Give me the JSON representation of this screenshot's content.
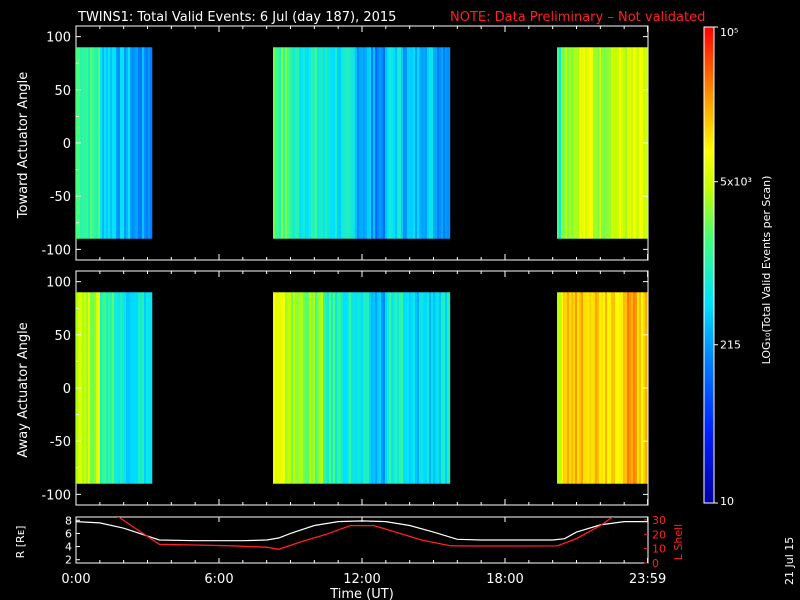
{
  "title": "TWINS1: Total Valid Events:  6 Jul (day 187), 2015",
  "note": "NOTE: Data Preliminary – Not validated",
  "note_color": "#ff2020",
  "stamp": "21 Jul 15",
  "chart_data": {
    "type": "heatmap",
    "x_unit": "hours UT",
    "x_range": [
      0,
      24
    ],
    "xlabel": "Time (UT)",
    "x_ticks": [
      "0:00",
      "6:00",
      "12:00",
      "18:00",
      "23:59"
    ],
    "x_tick_hours": [
      0,
      6,
      12,
      18,
      23.983
    ],
    "data_intervals_hours": [
      [
        0,
        3.2
      ],
      [
        8.3,
        15.7
      ],
      [
        20.2,
        24
      ]
    ],
    "panels": [
      {
        "ylabel": "Toward Actuator Angle",
        "ylim": [
          -110,
          110
        ],
        "y_ticks": [
          100,
          50,
          0,
          -50,
          -100
        ],
        "data_yrange": [
          -90,
          90
        ],
        "profile_log10": [
          3.2,
          3.1,
          2.7,
          2.5,
          2.3,
          2.3,
          2.4,
          2.6,
          2.7,
          2.6,
          2.6,
          2.8,
          3.2,
          3.2,
          2.9,
          2.9,
          2.8,
          2.7,
          2.5,
          2.3,
          2.7,
          2.5,
          2.6,
          2.4,
          2.6,
          2.8,
          2.6,
          2.8,
          3.0,
          2.9,
          3.0,
          3.6,
          3.8,
          3.6,
          3.7,
          3.7,
          3.7
        ]
      },
      {
        "ylabel": "Away Actuator Angle",
        "ylim": [
          -110,
          110
        ],
        "y_ticks": [
          100,
          50,
          0,
          -50,
          -100
        ],
        "data_yrange": [
          -90,
          90
        ],
        "profile_log10": [
          3.8,
          3.6,
          3.1,
          2.8,
          2.8,
          2.7,
          3.0,
          3.2,
          3.4,
          3.2,
          3.3,
          3.5,
          3.8,
          3.7,
          3.5,
          3.4,
          3.0,
          2.9,
          2.7,
          2.5,
          2.9,
          2.6,
          2.7,
          2.7,
          2.8,
          3.2,
          3.0,
          3.3,
          3.5,
          3.4,
          3.4,
          4.2,
          4.3,
          4.2,
          4.2,
          4.3,
          4.2
        ]
      }
    ],
    "colorbar": {
      "label": "LOG₁₀(Total Valid Events per Scan)",
      "tick_labels": [
        "10",
        "215",
        "5x10³",
        "10⁵"
      ],
      "tick_values_log10": [
        1,
        2.33,
        3.7,
        5
      ],
      "range_log10": [
        1,
        5
      ]
    },
    "orbit_panel": {
      "left_ylabel": "R [Rᴇ]",
      "left_ticks": [
        8,
        6,
        4,
        2
      ],
      "left_range": [
        1.5,
        8.5
      ],
      "right_ylabel": "L Shell",
      "right_ticks": [
        30,
        20,
        10,
        0
      ],
      "right_range": [
        0,
        32
      ],
      "right_color": "#ff2020",
      "R": {
        "hours": [
          0,
          1,
          2,
          3,
          3.5,
          5,
          6,
          7,
          8,
          8.5,
          9,
          10,
          11,
          12,
          13,
          14,
          15,
          16,
          17,
          18,
          19,
          20,
          20.5,
          21,
          22,
          23,
          24
        ],
        "values": [
          7.8,
          7.6,
          6.8,
          5.6,
          5.0,
          4.9,
          4.9,
          4.9,
          5.0,
          5.3,
          6.0,
          7.2,
          7.8,
          7.9,
          7.8,
          7.2,
          6.2,
          5.1,
          5.0,
          5.0,
          5.0,
          5.0,
          5.2,
          6.2,
          7.3,
          7.8,
          7.8
        ]
      },
      "L": {
        "segments": [
          {
            "hours": [
              1.7,
              2.5,
              3.5,
              5,
              6.5,
              8,
              8.5,
              9.5,
              10.5,
              11.5,
              12.5,
              13.5,
              14.5,
              15.7
            ],
            "values": [
              33,
              24,
              13,
              12.5,
              12,
              11,
              9.5,
              15,
              20,
              26,
              26,
              21,
              16,
              12
            ]
          },
          {
            "hours": [
              15.7,
              17,
              18.5,
              20.2,
              21,
              22,
              22.6
            ],
            "values": [
              12,
              11.8,
              11.8,
              11.9,
              17,
              26,
              33
            ]
          }
        ]
      }
    }
  }
}
